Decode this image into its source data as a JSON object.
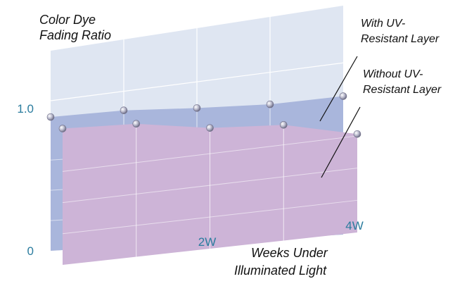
{
  "chart_data": {
    "type": "area",
    "view": "3d-perspective",
    "title_lines": [
      "Color Dye",
      "Fading Ratio"
    ],
    "xlabel_lines": [
      "Weeks Under",
      "Illuminated Light"
    ],
    "x": [
      0,
      1,
      2,
      3,
      4
    ],
    "xtick_labels": [
      {
        "x": 2,
        "label": "2W"
      },
      {
        "x": 4,
        "label": "4W"
      }
    ],
    "yticks": [
      {
        "value": 0,
        "label": "0"
      },
      {
        "value": 1.0,
        "label": "1.0"
      }
    ],
    "ylim": [
      0,
      1.6
    ],
    "series": [
      {
        "name": "With UV-Resistant Layer",
        "label_lines": [
          "With UV-",
          "Resistant Layer"
        ],
        "values": [
          0.94,
          0.95,
          0.93,
          0.92,
          0.94
        ],
        "color": "#a9b6dc",
        "layer": "back"
      },
      {
        "name": "Without UV-Resistant Layer",
        "label_lines": [
          "Without UV-",
          "Resistant Layer"
        ],
        "values": [
          0.93,
          0.9,
          0.81,
          0.77,
          0.65
        ],
        "color": "#cdb4d7",
        "layer": "front"
      }
    ],
    "colors": {
      "tick_text": "#2b7c9e",
      "back_wall": "#dfe6f2",
      "grid": "#ffffff",
      "marker": "#a4a4b8",
      "text": "#111111"
    },
    "grid": true,
    "legend": "callout-labels-right"
  }
}
